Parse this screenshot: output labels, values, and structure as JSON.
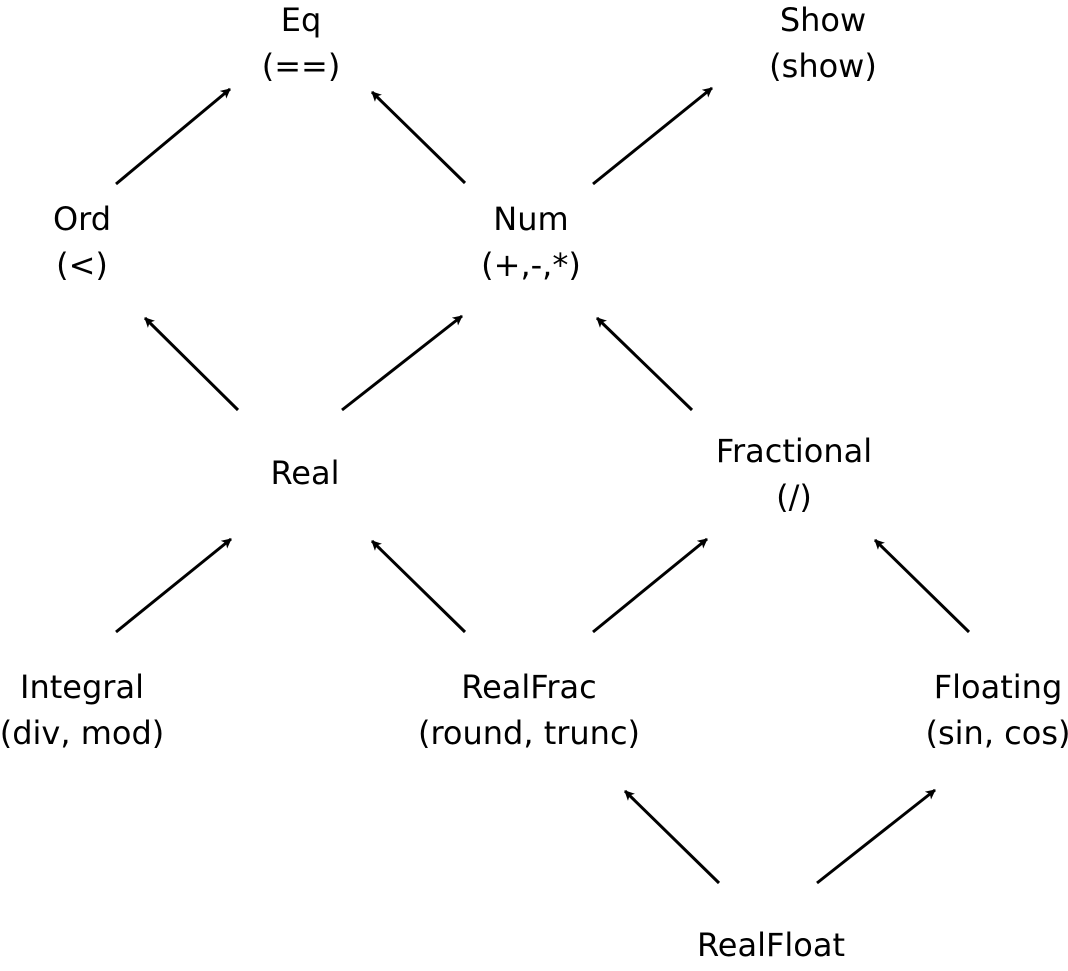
{
  "nodes": {
    "eq": {
      "name": "Eq",
      "ops": "(==)"
    },
    "show": {
      "name": "Show",
      "ops": "(show)"
    },
    "ord": {
      "name": "Ord",
      "ops": "(<)"
    },
    "num": {
      "name": "Num",
      "ops": "(+,-,*)"
    },
    "real": {
      "name": "Real",
      "ops": ""
    },
    "fractional": {
      "name": "Fractional",
      "ops": "(/)"
    },
    "integral": {
      "name": "Integral",
      "ops": "(div, mod)"
    },
    "realfrac": {
      "name": "RealFrac",
      "ops": "(round, trunc)"
    },
    "floating": {
      "name": "Floating",
      "ops": "(sin, cos)"
    },
    "realfloat": {
      "name": "RealFloat",
      "ops": ""
    }
  },
  "edges": [
    {
      "from": "ord",
      "to": "eq"
    },
    {
      "from": "num",
      "to": "eq"
    },
    {
      "from": "num",
      "to": "show"
    },
    {
      "from": "real",
      "to": "ord"
    },
    {
      "from": "real",
      "to": "num"
    },
    {
      "from": "fractional",
      "to": "num"
    },
    {
      "from": "integral",
      "to": "real"
    },
    {
      "from": "realfrac",
      "to": "real"
    },
    {
      "from": "realfrac",
      "to": "fractional"
    },
    {
      "from": "floating",
      "to": "fractional"
    },
    {
      "from": "realfloat",
      "to": "realfrac"
    },
    {
      "from": "realfloat",
      "to": "floating"
    }
  ]
}
